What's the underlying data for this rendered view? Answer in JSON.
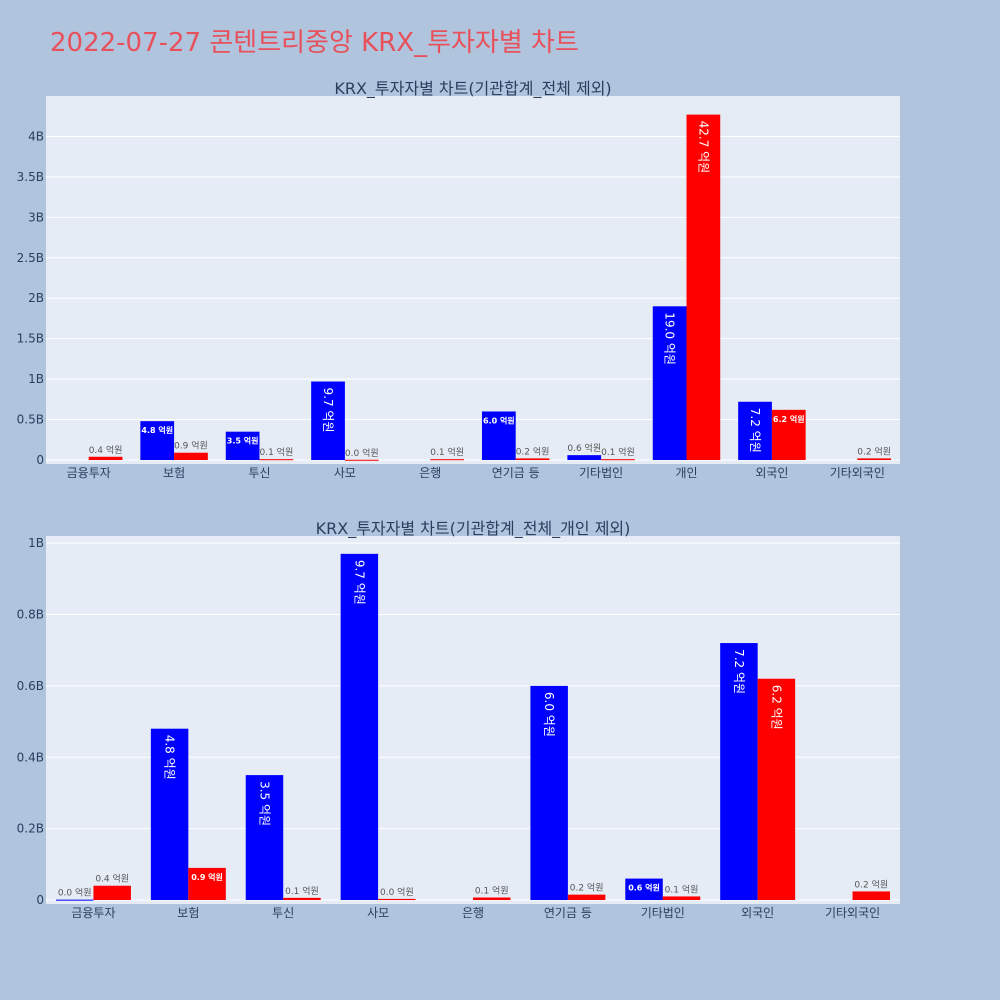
{
  "page_title": "2022-07-27 콘텐트리중앙 KRX_투자자별 차트",
  "colors": {
    "buy": "#0000ff",
    "sell": "#ff0000",
    "plot_bg": "#e5ecf6",
    "page_bg": "#b0c4de",
    "title": "#e8505b"
  },
  "chart_data": [
    {
      "type": "bar",
      "title": "KRX_투자자별 차트(기관합계_전체 제외)",
      "categories": [
        "금융투자",
        "보험",
        "투신",
        "사모",
        "은행",
        "연기금 등",
        "기타법인",
        "개인",
        "외국인",
        "기타외국인"
      ],
      "ylim": [
        0,
        4.5
      ],
      "yticks": [
        0,
        0.5,
        1,
        1.5,
        2,
        2.5,
        3,
        3.5,
        4
      ],
      "yticklabels": [
        "0",
        "0.5B",
        "1B",
        "1.5B",
        "2B",
        "2.5B",
        "3B",
        "3.5B",
        "4B"
      ],
      "grid": true,
      "series": [
        {
          "values": [
            0,
            0.48,
            0.35,
            0.97,
            0,
            0.6,
            0.06,
            1.9,
            0.72,
            0
          ],
          "labels": [
            "",
            "4.8 억원",
            "3.5 억원",
            "9.7 억원",
            "",
            "6.0 억원",
            "0.6 억원",
            "19.0 억원",
            "7.2 억원",
            ""
          ]
        },
        {
          "values": [
            0.04,
            0.09,
            0.01,
            0.003,
            0.01,
            0.02,
            0.01,
            4.27,
            0.62,
            0.02
          ],
          "labels": [
            "0.4 억원",
            "0.9 억원",
            "0.1 억원",
            "0.0 억원",
            "0.1 억원",
            "0.2 억원",
            "0.1 억원",
            "42.7 억원",
            "6.2 억원",
            "0.2 억원"
          ]
        }
      ]
    },
    {
      "type": "bar",
      "title": "KRX_투자자별 차트(기관합계_전체_개인 제외)",
      "categories": [
        "금융투자",
        "보험",
        "투신",
        "사모",
        "은행",
        "연기금 등",
        "기타법인",
        "외국인",
        "기타외국인"
      ],
      "ylim": [
        0,
        1.02
      ],
      "yticks": [
        0,
        0.2,
        0.4,
        0.6,
        0.8,
        1
      ],
      "yticklabels": [
        "0",
        "0.2B",
        "0.4B",
        "0.6B",
        "0.8B",
        "1B"
      ],
      "grid": true,
      "series": [
        {
          "values": [
            0.001,
            0.48,
            0.35,
            0.97,
            0,
            0.6,
            0.06,
            0.72,
            0
          ],
          "labels": [
            "0.0 억원",
            "4.8 억원",
            "3.5 억원",
            "9.7 억원",
            "",
            "6.0 억원",
            "0.6 억원",
            "7.2 억원",
            ""
          ]
        },
        {
          "values": [
            0.04,
            0.09,
            0.006,
            0.003,
            0.007,
            0.015,
            0.01,
            0.62,
            0.024
          ],
          "labels": [
            "0.4 억원",
            "0.9 억원",
            "0.1 억원",
            "0.0 억원",
            "0.1 억원",
            "0.2 억원",
            "0.1 억원",
            "6.2 억원",
            "0.2 억원"
          ]
        }
      ]
    }
  ]
}
